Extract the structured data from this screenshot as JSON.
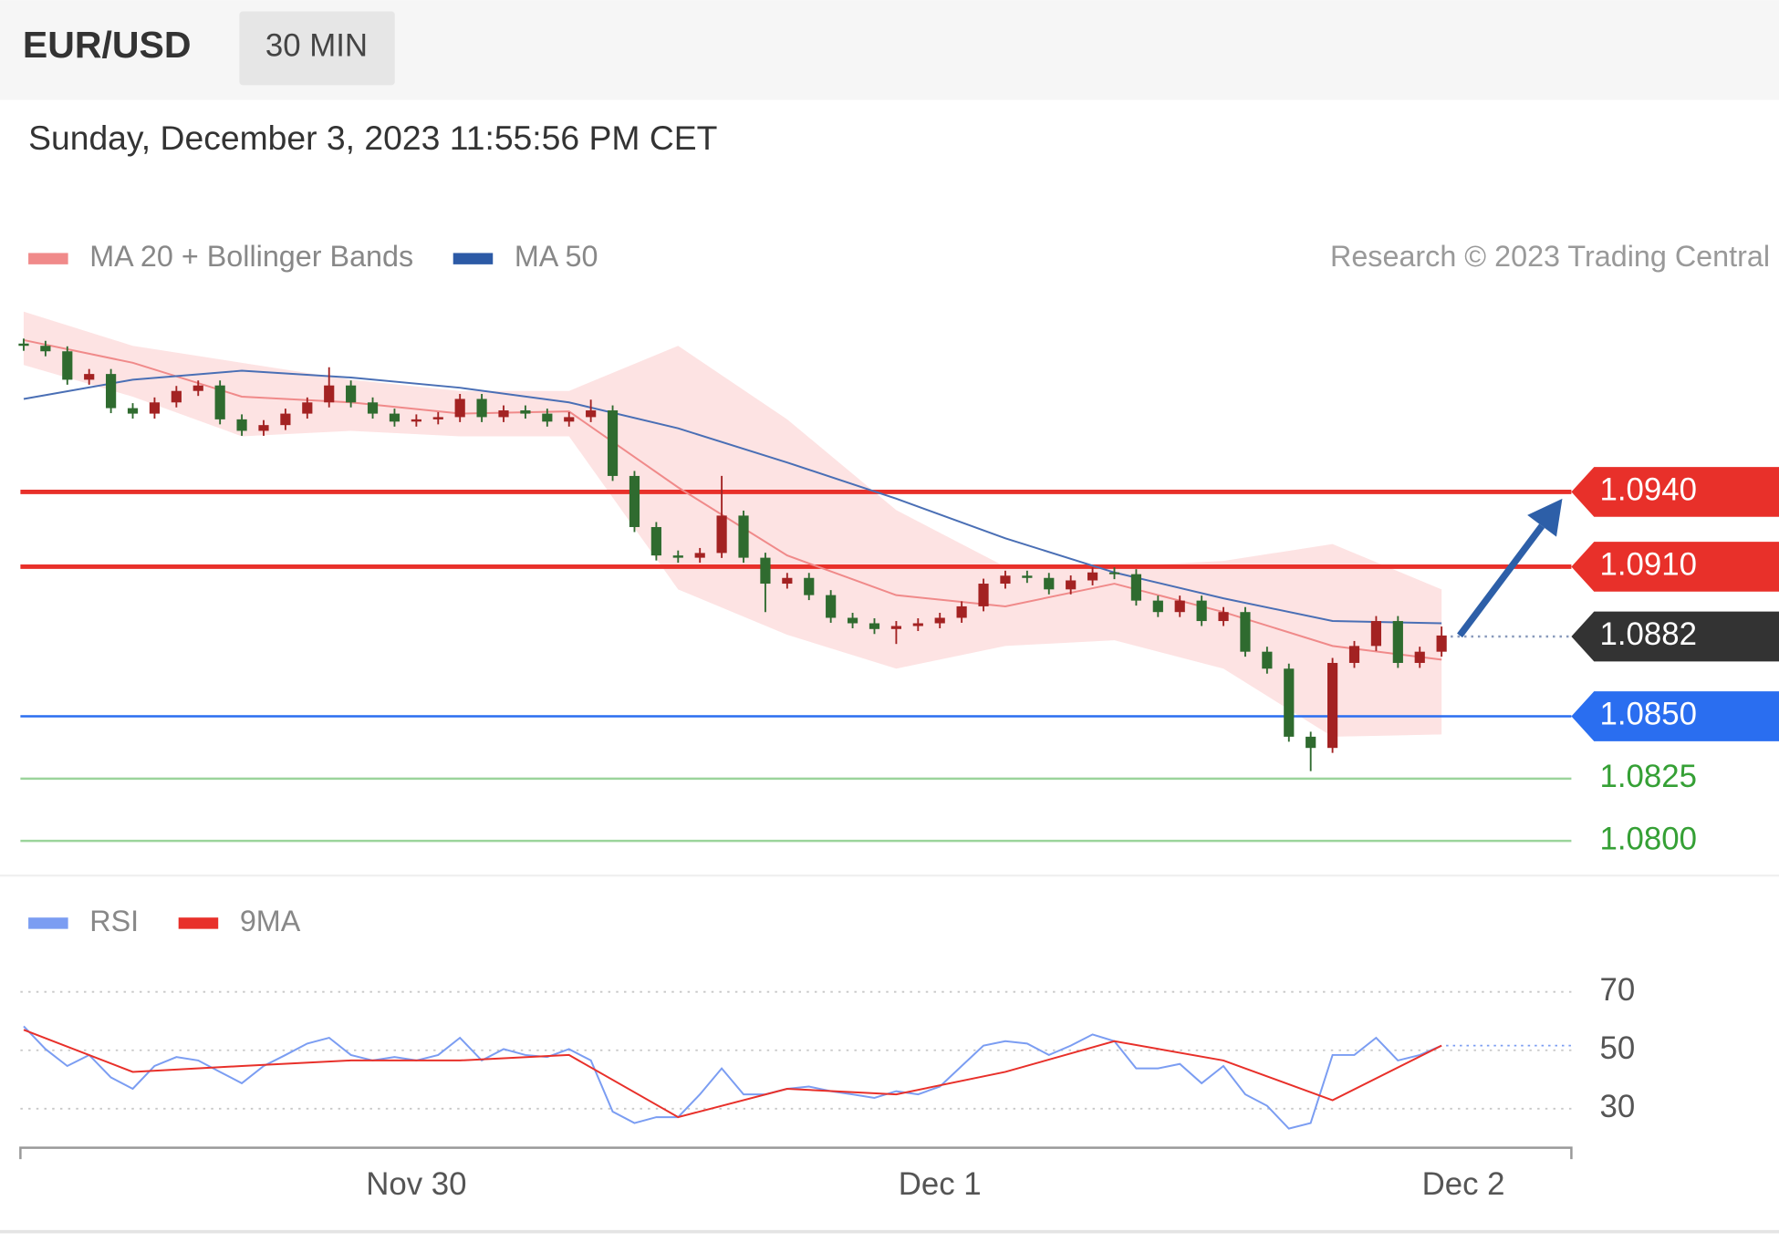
{
  "header": {
    "symbol": "EUR/USD",
    "interval": "30 MIN",
    "timestamp": "Sunday, December 3, 2023 11:55:56 PM CET"
  },
  "chart_data": [
    {
      "type": "candlestick",
      "credit": "Research © 2023 Trading Central",
      "xlim": [
        5.85,
        76.95
      ],
      "ylim": [
        1.0787,
        1.1019
      ],
      "up_color": "#a32222",
      "down_color": "#2f6b2f",
      "x": [
        6,
        7,
        8,
        9,
        10,
        11,
        12,
        13,
        14,
        15,
        16,
        17,
        18,
        19,
        20,
        21,
        22,
        23,
        24,
        25,
        26,
        27,
        28,
        29,
        30,
        31,
        32,
        33,
        34,
        35,
        36,
        37,
        38,
        39,
        40,
        41,
        42,
        43,
        44,
        45,
        46,
        47,
        48,
        49,
        50,
        51,
        52,
        53,
        54,
        55,
        56,
        57,
        58,
        59,
        60,
        61,
        62,
        63,
        64,
        65,
        66,
        67,
        68,
        69,
        70,
        71
      ],
      "open": [
        1.09995,
        1.09986,
        1.09964,
        1.0985,
        1.09873,
        1.09736,
        1.09714,
        1.09759,
        1.09805,
        1.09827,
        1.09691,
        1.09645,
        1.09668,
        1.09714,
        1.09759,
        1.09827,
        1.09759,
        1.09714,
        1.09682,
        1.09691,
        1.097,
        1.09773,
        1.097,
        1.09727,
        1.09714,
        1.09682,
        1.097,
        1.09727,
        1.09464,
        1.09259,
        1.09145,
        1.09136,
        1.09155,
        1.09305,
        1.09136,
        1.09032,
        1.09055,
        1.08986,
        1.08895,
        1.08873,
        1.0885,
        1.08862,
        1.08873,
        1.08895,
        1.08941,
        1.09032,
        1.09064,
        1.09055,
        1.09009,
        1.09045,
        1.09077,
        1.0907,
        1.08964,
        1.08918,
        1.08964,
        1.08882,
        1.08918,
        1.08759,
        1.08691,
        1.08418,
        1.08373,
        1.08714,
        1.08782,
        1.08882,
        1.08714,
        1.08759
      ],
      "high": [
        1.10015,
        1.10006,
        1.09984,
        1.09893,
        1.09893,
        1.09756,
        1.09779,
        1.09825,
        1.09847,
        1.09847,
        1.09711,
        1.09688,
        1.09734,
        1.09779,
        1.099,
        1.09847,
        1.09779,
        1.09734,
        1.09711,
        1.0972,
        1.09793,
        1.09793,
        1.09747,
        1.09747,
        1.09734,
        1.0972,
        1.0977,
        1.09747,
        1.09484,
        1.09279,
        1.09165,
        1.09175,
        1.09464,
        1.09325,
        1.09156,
        1.09075,
        1.09075,
        1.09006,
        1.08915,
        1.08893,
        1.08882,
        1.08893,
        1.08915,
        1.08961,
        1.09052,
        1.09084,
        1.09084,
        1.09075,
        1.09065,
        1.09097,
        1.09097,
        1.0909,
        1.08984,
        1.08984,
        1.08984,
        1.08938,
        1.08938,
        1.08779,
        1.08711,
        1.08438,
        1.08734,
        1.08802,
        1.08902,
        1.08902,
        1.08779,
        1.0886
      ],
      "low": [
        1.09966,
        1.09944,
        1.0983,
        1.0983,
        1.09716,
        1.09694,
        1.09694,
        1.09739,
        1.09785,
        1.09671,
        1.09625,
        1.09625,
        1.09648,
        1.09694,
        1.09739,
        1.09739,
        1.09694,
        1.09662,
        1.09662,
        1.09671,
        1.0968,
        1.0968,
        1.0968,
        1.09694,
        1.09662,
        1.09662,
        1.0968,
        1.09444,
        1.09239,
        1.09125,
        1.09116,
        1.09116,
        1.09135,
        1.09116,
        1.08918,
        1.09012,
        1.08966,
        1.08875,
        1.08853,
        1.0883,
        1.0879,
        1.08842,
        1.08853,
        1.08875,
        1.08921,
        1.09012,
        1.09035,
        1.08989,
        1.08989,
        1.09025,
        1.0905,
        1.08944,
        1.08898,
        1.08898,
        1.08862,
        1.08862,
        1.08739,
        1.08671,
        1.08398,
        1.0828,
        1.08353,
        1.08694,
        1.08762,
        1.08694,
        1.08694,
        1.08739
      ],
      "close": [
        1.09986,
        1.09964,
        1.0985,
        1.09873,
        1.09736,
        1.09714,
        1.09759,
        1.09805,
        1.09827,
        1.09691,
        1.09645,
        1.09668,
        1.09714,
        1.09759,
        1.09827,
        1.09759,
        1.09714,
        1.09682,
        1.09691,
        1.097,
        1.09773,
        1.097,
        1.09727,
        1.09714,
        1.09682,
        1.097,
        1.09727,
        1.09464,
        1.09259,
        1.09145,
        1.09136,
        1.09155,
        1.09305,
        1.09136,
        1.09032,
        1.09055,
        1.08986,
        1.08895,
        1.08873,
        1.0885,
        1.08862,
        1.08873,
        1.08895,
        1.08941,
        1.09032,
        1.09064,
        1.09055,
        1.09009,
        1.09045,
        1.09077,
        1.0907,
        1.08964,
        1.08918,
        1.08964,
        1.08882,
        1.08918,
        1.08759,
        1.08691,
        1.08418,
        1.08373,
        1.08714,
        1.08782,
        1.08882,
        1.08714,
        1.08759,
        1.08824
      ],
      "series": [
        {
          "name": "MA 20 + Bollinger Bands",
          "color": "#f08a8a",
          "band_color": "#fde3e3",
          "swatch_color": "#f08a8a",
          "x": [
            6,
            11,
            16,
            21,
            26,
            31,
            36,
            41,
            46,
            51,
            56,
            61,
            66,
            71
          ],
          "values": [
            1.10009,
            1.09918,
            1.09782,
            1.09759,
            1.09714,
            1.09723,
            1.09418,
            1.09145,
            1.08986,
            1.08941,
            1.09032,
            1.08918,
            1.08782,
            1.08727
          ],
          "upper": [
            1.10123,
            1.09986,
            1.09918,
            1.0985,
            1.09805,
            1.09805,
            1.09986,
            1.09691,
            1.09327,
            1.091,
            1.091,
            1.09123,
            1.09191,
            1.09009
          ],
          "lower": [
            1.09909,
            1.09782,
            1.09623,
            1.09645,
            1.09623,
            1.09623,
            1.09009,
            1.08827,
            1.08691,
            1.08782,
            1.08805,
            1.08691,
            1.08418,
            1.08427
          ]
        },
        {
          "name": "MA 50",
          "color": "#4a6fb5",
          "swatch_color": "#2c5aa6",
          "x": [
            6,
            11,
            16,
            21,
            26,
            31,
            36,
            41,
            46,
            51,
            56,
            61,
            66,
            71
          ],
          "values": [
            1.09773,
            1.0985,
            1.09886,
            1.09859,
            1.09818,
            1.09759,
            1.09655,
            1.09518,
            1.09373,
            1.09214,
            1.09077,
            1.08973,
            1.08882,
            1.08873
          ]
        }
      ],
      "levels": [
        {
          "value": 1.094,
          "label": "1.0940",
          "kind": "resistance",
          "color": "#e8302a"
        },
        {
          "value": 1.091,
          "label": "1.0910",
          "kind": "resistance",
          "color": "#e8302a"
        },
        {
          "value": 1.0882,
          "label": "1.0882",
          "kind": "current",
          "color": "#333333"
        },
        {
          "value": 1.085,
          "label": "1.0850",
          "kind": "support",
          "color": "#2a6ef0"
        },
        {
          "value": 1.0825,
          "label": "1.0825",
          "kind": "pivot",
          "color": "#9bd49b",
          "text_color": "#35a035"
        },
        {
          "value": 1.08,
          "label": "1.0800",
          "kind": "pivot",
          "color": "#9bd49b",
          "text_color": "#35a035"
        }
      ]
    },
    {
      "type": "line",
      "xlim": [
        5.85,
        76.95
      ],
      "ylim": [
        17.4,
        83.4
      ],
      "yticks": [
        70,
        50,
        30
      ],
      "grid": true,
      "xticks": [
        {
          "value": 24,
          "label": "Nov 30"
        },
        {
          "value": 48,
          "label": "Dec 1"
        },
        {
          "value": 72,
          "label": "Dec 2"
        }
      ],
      "x": [
        6,
        7,
        8,
        9,
        10,
        11,
        12,
        13,
        14,
        15,
        16,
        17,
        18,
        19,
        20,
        21,
        22,
        23,
        24,
        25,
        26,
        27,
        28,
        29,
        30,
        31,
        32,
        33,
        34,
        35,
        36,
        37,
        38,
        39,
        40,
        41,
        42,
        43,
        44,
        45,
        46,
        47,
        48,
        49,
        50,
        51,
        52,
        53,
        54,
        55,
        56,
        57,
        58,
        59,
        60,
        61,
        62,
        63,
        64,
        65,
        66,
        67,
        68,
        69,
        70,
        71
      ],
      "series": [
        {
          "name": "RSI",
          "color": "#7b9df2",
          "values": [
            58.2,
            50.4,
            44.6,
            48.4,
            40.7,
            36.8,
            44.6,
            47.7,
            46.5,
            42.6,
            38.7,
            44.6,
            48.4,
            52.3,
            54.3,
            48.4,
            46.5,
            47.7,
            46.5,
            48.4,
            54.3,
            46.5,
            50.4,
            48.4,
            47.7,
            50.4,
            46.5,
            29.0,
            25.1,
            27.1,
            27.1,
            34.9,
            43.8,
            34.9,
            34.9,
            36.8,
            37.6,
            36.0,
            34.9,
            33.7,
            36.0,
            34.9,
            37.6,
            44.6,
            51.6,
            53.1,
            52.3,
            48.4,
            51.6,
            55.4,
            53.1,
            43.8,
            43.8,
            45.3,
            38.7,
            44.6,
            34.9,
            31.0,
            23.2,
            25.1,
            48.4,
            48.4,
            54.3,
            46.5,
            48.4,
            51.6
          ]
        },
        {
          "name": "9MA",
          "color": "#e8302a",
          "x": [
            6,
            11,
            16,
            21,
            26,
            31,
            36,
            41,
            46,
            51,
            56,
            61,
            66,
            71
          ],
          "values": [
            57.0,
            42.6,
            44.6,
            46.5,
            46.5,
            48.4,
            27.1,
            36.8,
            34.9,
            42.6,
            53.1,
            46.5,
            32.9,
            51.6
          ]
        }
      ]
    }
  ]
}
